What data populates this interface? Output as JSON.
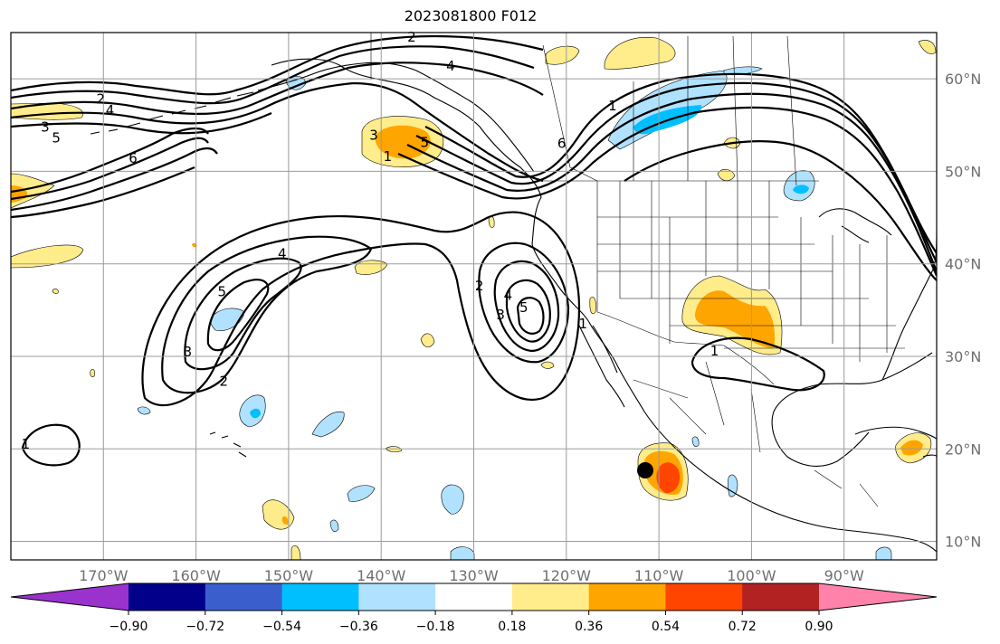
{
  "title": "2023081800 F012",
  "map": {
    "lon_ticks": [
      "170°W",
      "160°W",
      "150°W",
      "140°W",
      "130°W",
      "120°W",
      "110°W",
      "100°W",
      "90°W"
    ],
    "lat_ticks": [
      "60°N",
      "50°N",
      "40°N",
      "30°N",
      "20°N",
      "10°N"
    ],
    "lon_range": [
      -180,
      -80
    ],
    "lat_range": [
      8,
      65
    ],
    "grid": true
  },
  "colorbar": {
    "levels": [
      "−0.90",
      "−0.72",
      "−0.54",
      "−0.36",
      "−0.18",
      "0.18",
      "0.36",
      "0.54",
      "0.72",
      "0.90"
    ],
    "colors": [
      "#9a32cd",
      "#00008b",
      "#3a5fcd",
      "#00bfff",
      "#b0e2ff",
      "#ffffff",
      "#ffec8b",
      "#ffa500",
      "#ff4500",
      "#b22222",
      "#ff82ab"
    ],
    "extend": "both"
  },
  "contours": {
    "labels": [
      {
        "text": "2",
        "lon": -170.3,
        "lat": 57.8
      },
      {
        "text": "4",
        "lon": -169.3,
        "lat": 56.6
      },
      {
        "text": "3",
        "lon": -176.3,
        "lat": 54.8
      },
      {
        "text": "5",
        "lon": -175.1,
        "lat": 53.6
      },
      {
        "text": "6",
        "lon": -166.8,
        "lat": 51.4
      },
      {
        "text": "2",
        "lon": -136.7,
        "lat": 64.5
      },
      {
        "text": "4",
        "lon": -132.5,
        "lat": 61.4
      },
      {
        "text": "3",
        "lon": -140.8,
        "lat": 53.9
      },
      {
        "text": "5",
        "lon": -135.3,
        "lat": 53.1
      },
      {
        "text": "1",
        "lon": -139.3,
        "lat": 51.6
      },
      {
        "text": "6",
        "lon": -120.5,
        "lat": 53.0
      },
      {
        "text": "1",
        "lon": -115.0,
        "lat": 57.1
      },
      {
        "text": "4",
        "lon": -150.7,
        "lat": 41.1
      },
      {
        "text": "5",
        "lon": -157.2,
        "lat": 37.0
      },
      {
        "text": "3",
        "lon": -160.9,
        "lat": 30.5
      },
      {
        "text": "2",
        "lon": -157.0,
        "lat": 27.3
      },
      {
        "text": "2",
        "lon": -129.4,
        "lat": 37.6
      },
      {
        "text": "4",
        "lon": -126.3,
        "lat": 36.6
      },
      {
        "text": "3",
        "lon": -127.1,
        "lat": 34.5
      },
      {
        "text": "5",
        "lon": -124.6,
        "lat": 35.3
      },
      {
        "text": "1",
        "lon": -118.2,
        "lat": 33.5
      },
      {
        "text": "1",
        "lon": -104.0,
        "lat": 30.6
      },
      {
        "text": "1",
        "lon": -178.4,
        "lat": 20.5
      }
    ]
  }
}
